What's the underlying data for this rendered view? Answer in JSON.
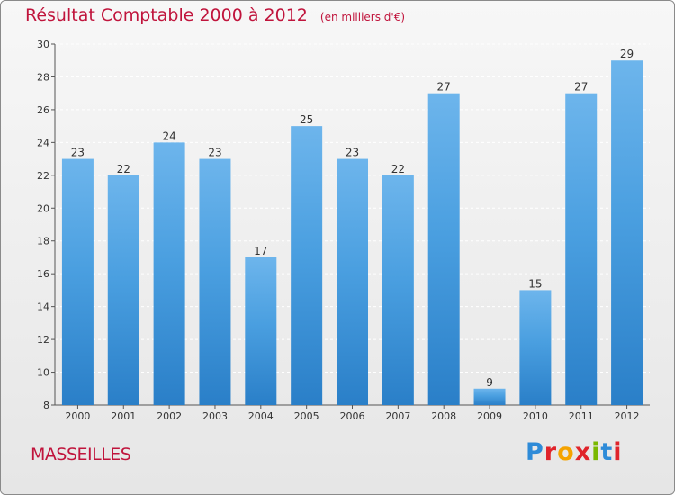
{
  "header": {
    "title": "Résultat Comptable 2000 à 2012",
    "subtitle": "(en milliers d'€)"
  },
  "footer": {
    "commune": "MASSEILLES",
    "logo_text": "Proxiti",
    "logo_colors": [
      "#2e8bd8",
      "#e0242b",
      "#f5a300",
      "#e0242b",
      "#7ab800",
      "#2e8bd8",
      "#e0242b"
    ]
  },
  "colors": {
    "bar": "#4a9fe0",
    "bar_top": "#6db5ec",
    "bar_bottom": "#2a7fc8",
    "title": "#c0143c",
    "grid": "#ffffff"
  },
  "chart_data": {
    "type": "bar",
    "title": "Résultat Comptable 2000 à 2012",
    "subtitle": "(en milliers d'€)",
    "categories": [
      "2000",
      "2001",
      "2002",
      "2003",
      "2004",
      "2005",
      "2006",
      "2007",
      "2008",
      "2009",
      "2010",
      "2011",
      "2012"
    ],
    "values": [
      23,
      22,
      24,
      23,
      17,
      25,
      23,
      22,
      27,
      9,
      15,
      27,
      29
    ],
    "ylim": [
      8,
      30
    ],
    "yticks": [
      8,
      10,
      12,
      14,
      16,
      18,
      20,
      22,
      24,
      26,
      28,
      30
    ],
    "grid": true,
    "data_labels": true
  }
}
